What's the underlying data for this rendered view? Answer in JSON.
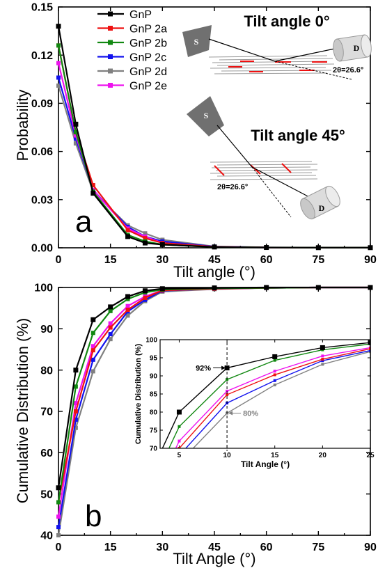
{
  "colors": {
    "GnP": "#000000",
    "GnP 2a": "#ee1111",
    "GnP 2b": "#118811",
    "GnP 2c": "#1111ee",
    "GnP 2d": "#808080",
    "GnP 2e": "#ee11ee"
  },
  "chart_data": [
    {
      "panel_label": "a",
      "type": "line",
      "xlabel": "Tilt angle (°)",
      "ylabel": "Probability",
      "xlim": [
        0,
        90
      ],
      "ylim": [
        0,
        0.15
      ],
      "xticks": [
        0,
        15,
        30,
        45,
        60,
        75,
        90
      ],
      "yticks": [
        0.0,
        0.03,
        0.06,
        0.09,
        0.12,
        0.15
      ],
      "ytick_labels": [
        "0.00",
        "0.03",
        "0.06",
        "0.09",
        "0.12",
        "0.15"
      ],
      "legend_position": "top-left",
      "x": [
        0,
        5,
        10,
        20,
        25,
        30,
        45,
        60,
        75,
        90
      ],
      "series": [
        {
          "name": "GnP",
          "values": [
            0.138,
            0.077,
            0.034,
            0.007,
            0.003,
            0.002,
            0.0005,
            0.0002,
            0.0001,
            0.0001
          ]
        },
        {
          "name": "GnP 2a",
          "values": [
            0.126,
            0.072,
            0.039,
            0.011,
            0.006,
            0.003,
            0.0006,
            0.0002,
            0.0001,
            0.0001
          ]
        },
        {
          "name": "GnP 2b",
          "values": [
            0.126,
            0.072,
            0.035,
            0.008,
            0.004,
            0.002,
            0.0005,
            0.0002,
            0.0001,
            0.0001
          ]
        },
        {
          "name": "GnP 2c",
          "values": [
            0.106,
            0.068,
            0.036,
            0.013,
            0.007,
            0.004,
            0.0007,
            0.0002,
            0.0001,
            0.0001
          ]
        },
        {
          "name": "GnP 2d",
          "values": [
            0.101,
            0.065,
            0.035,
            0.014,
            0.009,
            0.005,
            0.0008,
            0.0003,
            0.0001,
            0.0001
          ]
        },
        {
          "name": "GnP 2e",
          "values": [
            0.115,
            0.07,
            0.036,
            0.012,
            0.007,
            0.003,
            0.0006,
            0.0002,
            0.0001,
            0.0001
          ]
        }
      ],
      "schematics": [
        {
          "title": "Tilt angle 0°",
          "source_label": "S",
          "detector_label": "D",
          "angle_label": "2θ=26.6°"
        },
        {
          "title": "Tilt angle 45°",
          "source_label": "S",
          "detector_label": "D",
          "angle_label": "2θ=26.6°"
        }
      ]
    },
    {
      "panel_label": "b",
      "type": "line",
      "xlabel": "Tilt Angle (°)",
      "ylabel": "Cumulative Distribution (%)",
      "xlim": [
        0,
        90
      ],
      "ylim": [
        40,
        100
      ],
      "xticks": [
        0,
        15,
        30,
        45,
        60,
        75,
        90
      ],
      "yticks": [
        40,
        50,
        60,
        70,
        80,
        90,
        100
      ],
      "x": [
        0,
        5,
        10,
        15,
        20,
        25,
        30,
        45,
        60,
        75,
        90
      ],
      "series": [
        {
          "name": "GnP",
          "values": [
            51.5,
            80.0,
            92.2,
            95.3,
            97.8,
            99.2,
            99.7,
            99.9,
            100,
            100,
            100
          ]
        },
        {
          "name": "GnP 2a",
          "values": [
            48.0,
            70.0,
            84.8,
            90.3,
            94.6,
            97.5,
            99.3,
            99.7,
            99.9,
            100,
            100
          ]
        },
        {
          "name": "GnP 2b",
          "values": [
            48.0,
            76.0,
            89.0,
            94.3,
            97.2,
            98.8,
            99.5,
            99.8,
            99.9,
            100,
            100
          ]
        },
        {
          "name": "GnP 2c",
          "values": [
            42.0,
            68.0,
            82.5,
            88.7,
            94.2,
            97.0,
            99.2,
            99.7,
            99.9,
            100,
            100
          ]
        },
        {
          "name": "GnP 2d",
          "values": [
            40.0,
            66.0,
            79.7,
            87.5,
            93.2,
            96.7,
            99.0,
            99.6,
            99.9,
            100,
            100
          ]
        },
        {
          "name": "GnP 2e",
          "values": [
            44.5,
            72.0,
            85.8,
            91.3,
            95.5,
            97.8,
            99.3,
            99.7,
            99.9,
            100,
            100
          ]
        }
      ],
      "inset": {
        "xlabel": "Tilt Angle (°)",
        "ylabel": "Cumulative Distribution (%)",
        "xlim": [
          3,
          25
        ],
        "ylim": [
          70,
          100
        ],
        "xticks": [
          5,
          10,
          15,
          20,
          25
        ],
        "yticks": [
          70,
          75,
          80,
          85,
          90,
          95,
          100
        ],
        "annotations": [
          {
            "text": "92%",
            "x": 10,
            "y": 92.2,
            "color": "#000000"
          },
          {
            "text": "80%",
            "x": 10,
            "y": 79.7,
            "color": "#808080"
          }
        ],
        "marker_line_x": 10
      }
    }
  ]
}
